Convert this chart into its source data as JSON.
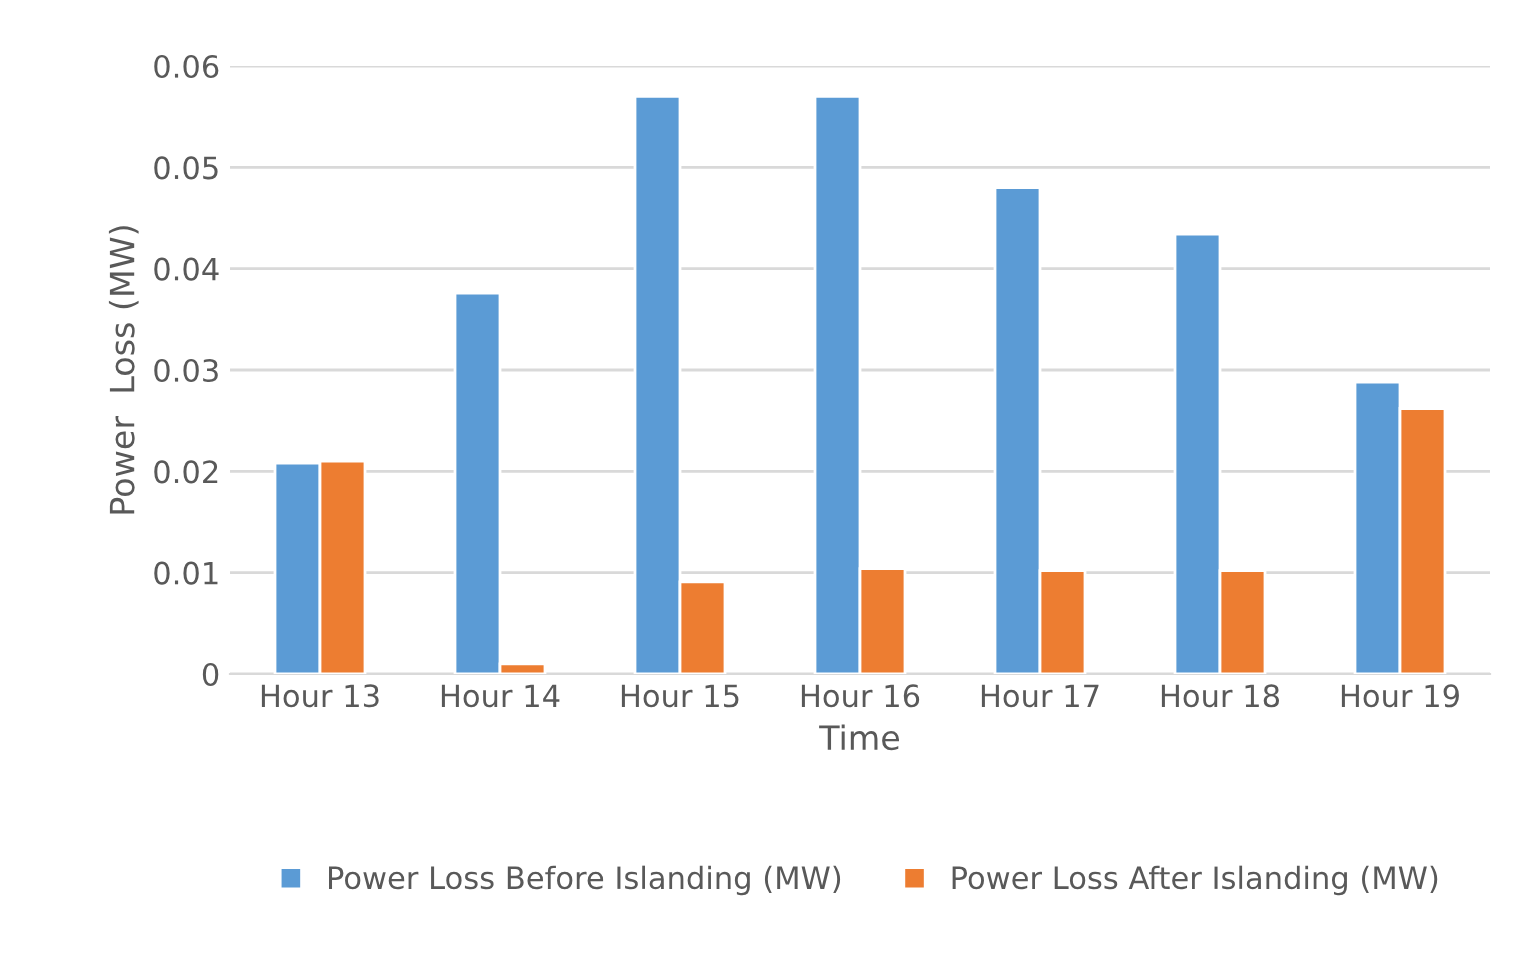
{
  "chart_data": {
    "type": "bar",
    "xlabel": "Time",
    "ylabel": "Power  Loss (MW)",
    "categories": [
      "Hour 13",
      "Hour 14",
      "Hour 15",
      "Hour 16",
      "Hour 17",
      "Hour 18",
      "Hour 19"
    ],
    "series": [
      {
        "name": "Power Loss Before Islanding (MW)",
        "color": "#5b9bd5",
        "values": [
          0.0208,
          0.0376,
          0.057,
          0.057,
          0.048,
          0.0434,
          0.0288
        ]
      },
      {
        "name": "Power Loss After Islanding (MW)",
        "color": "#ed7d31",
        "values": [
          0.021,
          0.001,
          0.0091,
          0.0104,
          0.0102,
          0.0102,
          0.0262
        ]
      }
    ],
    "ylim": [
      0,
      0.06
    ],
    "yticks": [
      0,
      0.01,
      0.02,
      0.03,
      0.04,
      0.05,
      0.06
    ],
    "grid": "y",
    "legend": "bottom"
  }
}
